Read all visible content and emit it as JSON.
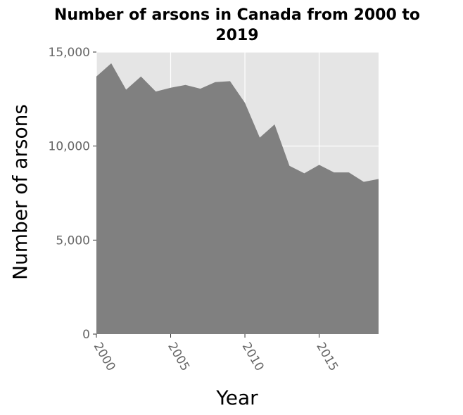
{
  "chart_data": {
    "type": "area",
    "title_lines": [
      "Number of arsons in Canada from 2000 to",
      "2019"
    ],
    "xlabel": "Year",
    "ylabel": "Number of arsons",
    "x": [
      2000,
      2001,
      2002,
      2003,
      2004,
      2005,
      2006,
      2007,
      2008,
      2009,
      2010,
      2011,
      2012,
      2013,
      2014,
      2015,
      2016,
      2017,
      2018,
      2019
    ],
    "series": [
      {
        "values": [
          13700,
          14400,
          13000,
          13700,
          12900,
          13100,
          13250,
          13050,
          13400,
          13450,
          12300,
          10450,
          11150,
          8950,
          8550,
          9000,
          8600,
          8600,
          8100,
          8250
        ]
      }
    ],
    "xlim": [
      2000,
      2019
    ],
    "ylim": [
      0,
      15000
    ],
    "x_ticks": [
      2000,
      2005,
      2010,
      2015
    ],
    "x_tick_labels": [
      "2000",
      "2005",
      "2010",
      "2015"
    ],
    "y_ticks": [
      0,
      5000,
      10000,
      15000
    ],
    "y_tick_labels": [
      "0",
      "5,000",
      "10,000",
      "15,000"
    ],
    "grid": true,
    "legend": "none",
    "colors": {
      "area": "#808080",
      "panel": "#e5e5e5",
      "grid": "#ffffff",
      "tick_text": "#666666",
      "text": "#000000"
    }
  }
}
